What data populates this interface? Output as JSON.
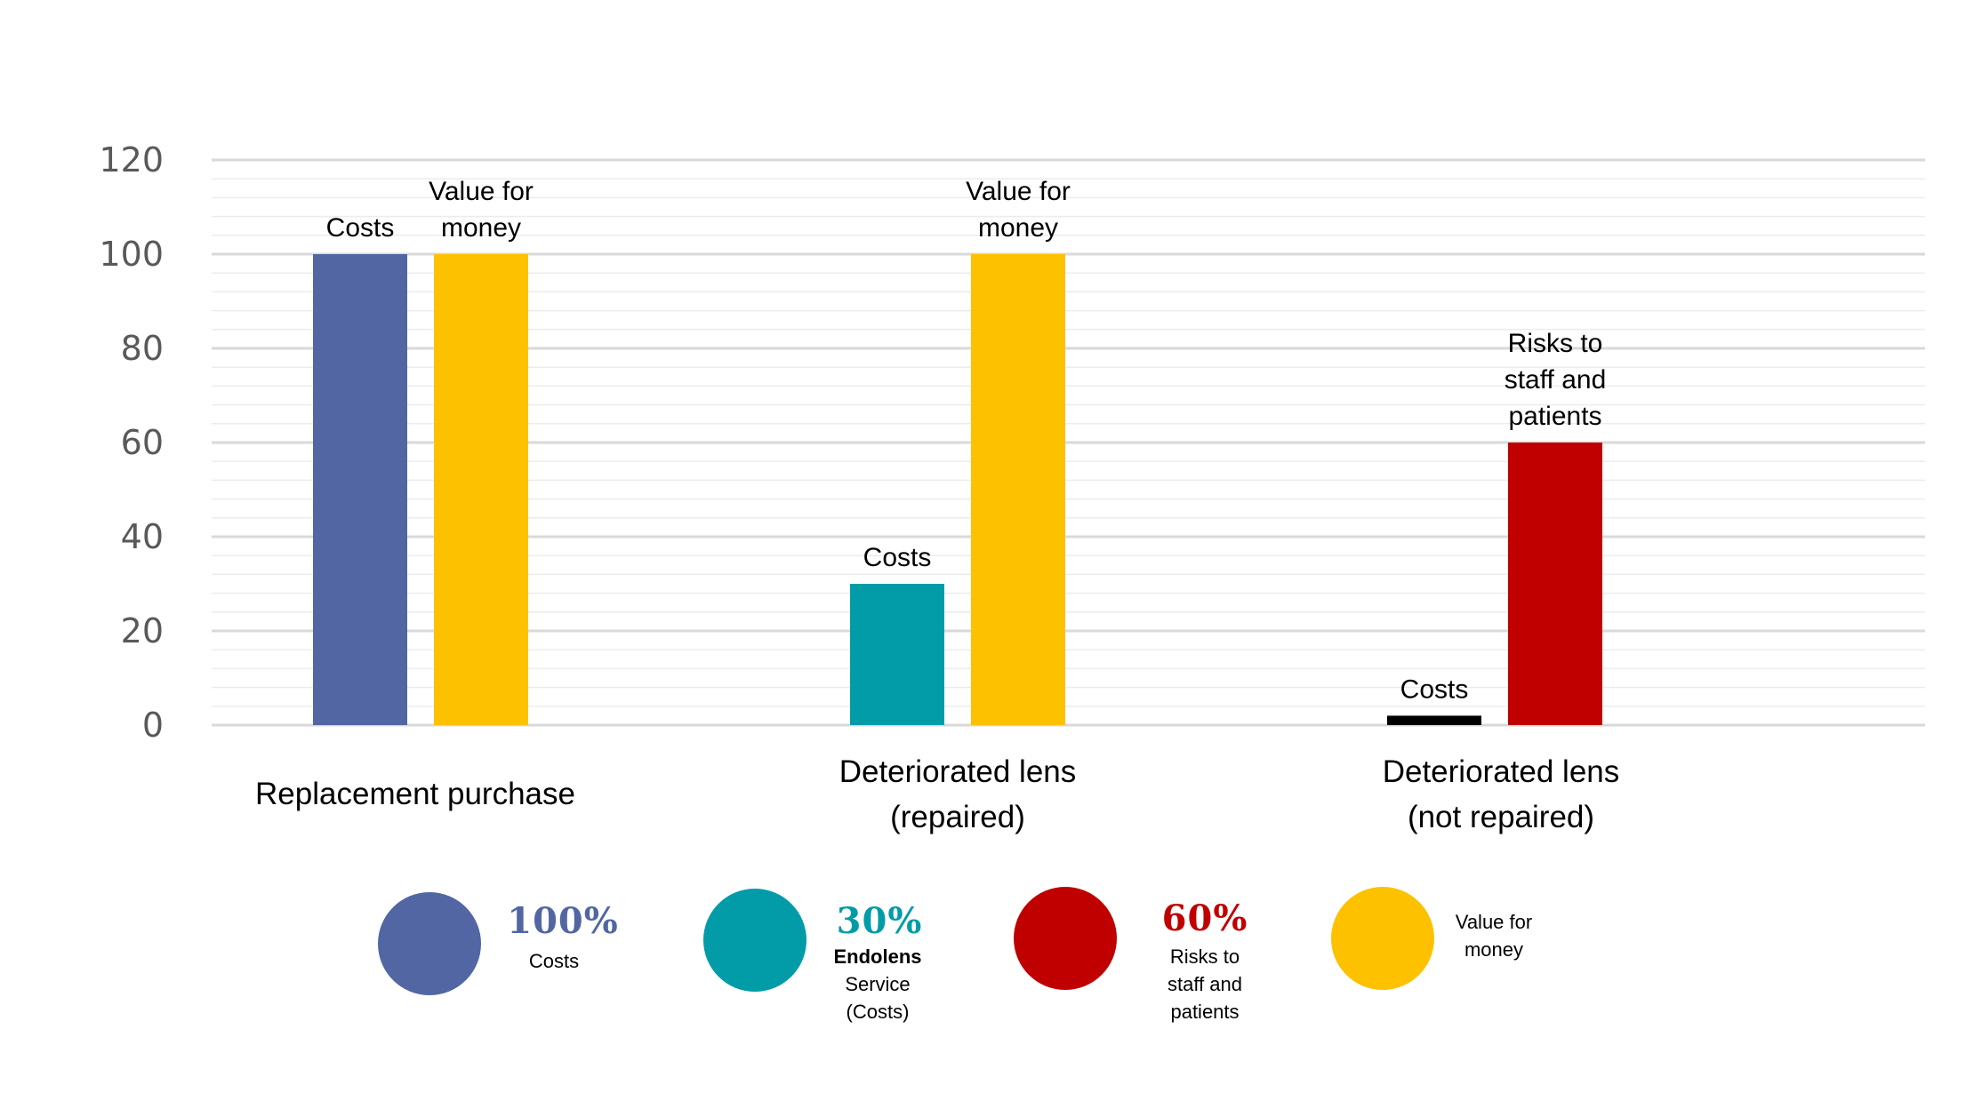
{
  "chart_data": {
    "type": "bar",
    "title": "",
    "xlabel": "",
    "ylabel": "",
    "ylim": [
      0,
      120
    ],
    "y_ticks": [
      0,
      20,
      40,
      60,
      80,
      100,
      120
    ],
    "minor_grid_step": 4,
    "grid": true,
    "groups": [
      {
        "label_lines": [
          "Replacement purchase"
        ],
        "bars": [
          {
            "series": "Costs",
            "value": 100,
            "color": "#5166a3",
            "label_lines": [
              "Costs"
            ]
          },
          {
            "series": "Value for money",
            "value": 100,
            "color": "#fec100",
            "label_lines": [
              "Value for",
              "money"
            ]
          }
        ]
      },
      {
        "label_lines": [
          "Deteriorated lens",
          "(repaired)"
        ],
        "bars": [
          {
            "series": "Endolens Service (Costs)",
            "value": 30,
            "color": "#019ca7",
            "label_lines": [
              "Costs"
            ]
          },
          {
            "series": "Value for money",
            "value": 100,
            "color": "#fec100",
            "label_lines": [
              "Value for",
              "money"
            ]
          }
        ]
      },
      {
        "label_lines": [
          "Deteriorated lens",
          "(not repaired)"
        ],
        "bars": [
          {
            "series": "Costs",
            "value": 2,
            "color": "#000000",
            "label_lines": [
              "Costs"
            ]
          },
          {
            "series": "Risks to staff and patients",
            "value": 60,
            "color": "#c00000",
            "label_lines": [
              "Risks to",
              "staff and",
              "patients"
            ]
          }
        ]
      }
    ]
  },
  "legend": [
    {
      "color": "#5166a3",
      "percent": "100%",
      "bold": "",
      "text": "Costs"
    },
    {
      "color": "#019ca7",
      "percent": "30%",
      "bold": "Endolens",
      "text": "Service\n(Costs)"
    },
    {
      "color": "#c00000",
      "percent": "60%",
      "bold": "",
      "text": "Risks to\nstaff and\npatients"
    },
    {
      "color": "#fec100",
      "percent": "",
      "bold": "",
      "text": "Value for\nmoney"
    }
  ]
}
